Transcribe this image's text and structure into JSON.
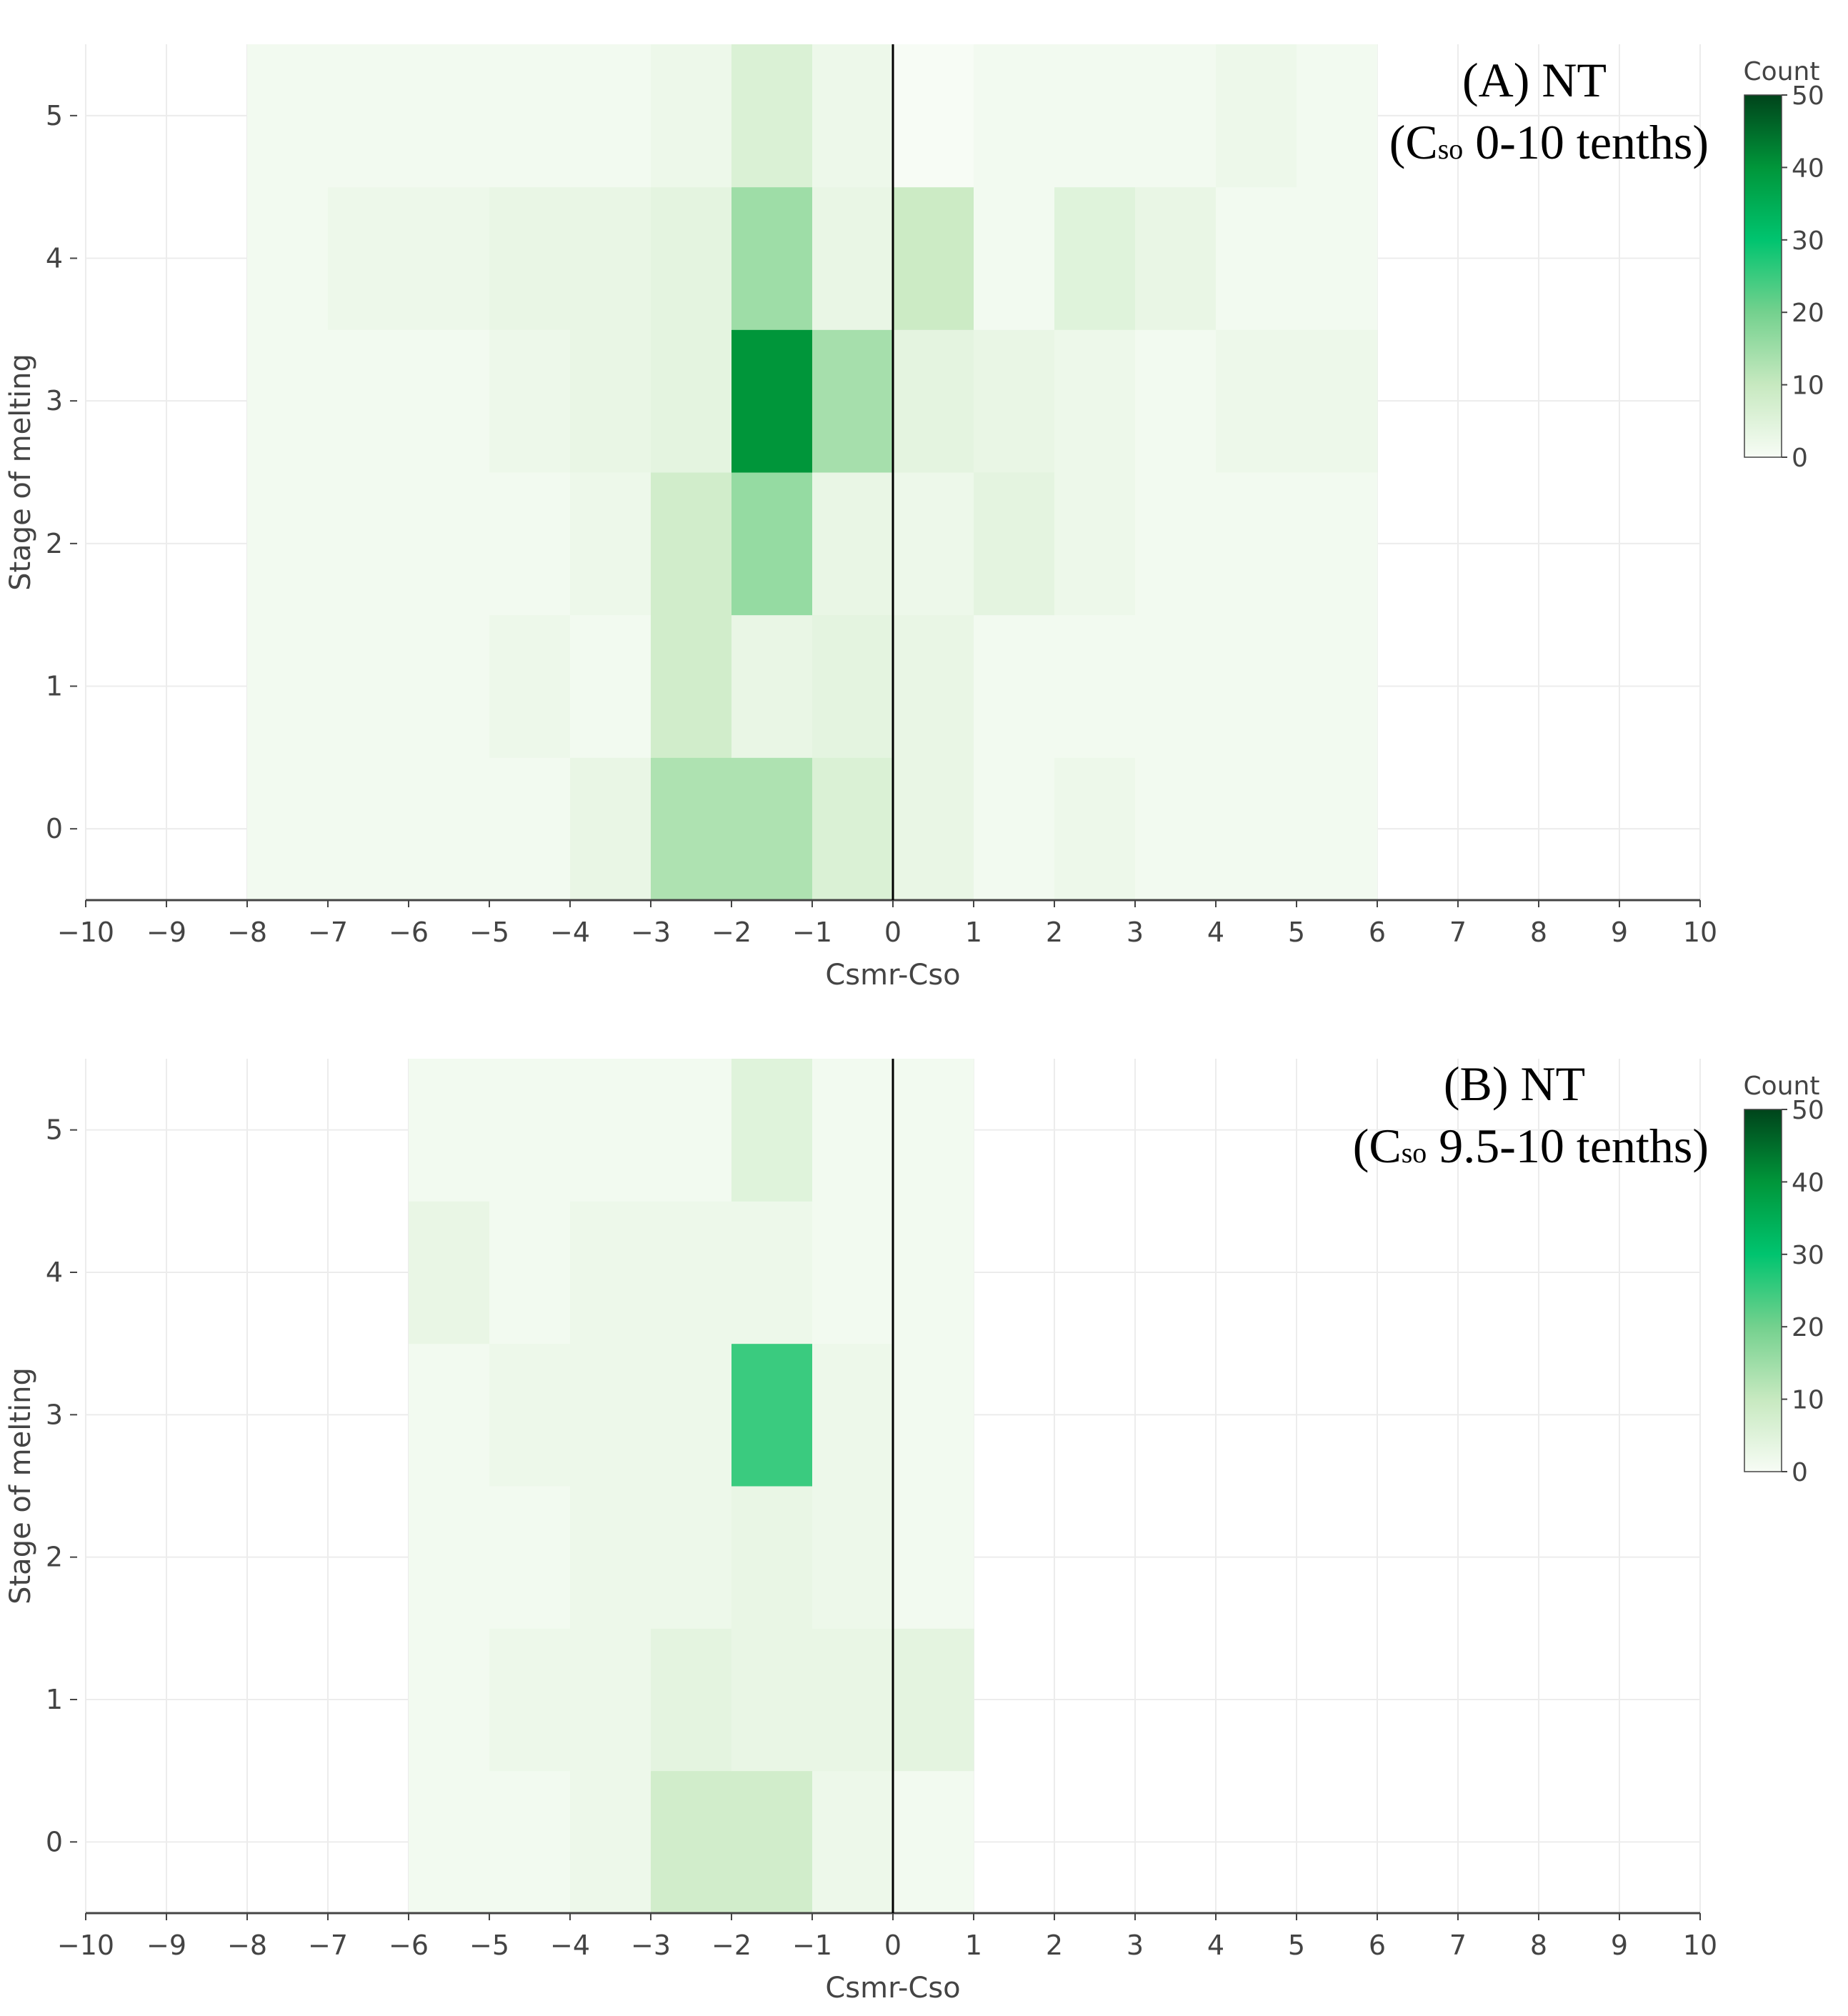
{
  "colorscale": {
    "stops": [
      [
        0,
        "#f7fcf5"
      ],
      [
        0.2,
        "#c7e9c0"
      ],
      [
        0.4,
        "#74d18e"
      ],
      [
        0.6,
        "#00c46f"
      ],
      [
        0.8,
        "#00963a"
      ],
      [
        1.0,
        "#00441b"
      ]
    ]
  },
  "chart_data": [
    {
      "type": "heatmap",
      "panel_label": "(A)  NT",
      "subtitle_prefix": "(C",
      "subtitle_sub": "so",
      "subtitle_rest": " 0-10 tenths)",
      "xlabel": "Csmr-Cso",
      "ylabel": "Stage of melting",
      "xlim": [
        -10,
        10
      ],
      "ylim": [
        -0.5,
        5.5
      ],
      "x_ticks": [
        "−10",
        "−9",
        "−8",
        "−7",
        "−6",
        "−5",
        "−4",
        "−3",
        "−2",
        "−1",
        "0",
        "1",
        "2",
        "3",
        "4",
        "5",
        "6",
        "7",
        "8",
        "9",
        "10"
      ],
      "y_ticks": [
        "0",
        "1",
        "2",
        "3",
        "4",
        "5"
      ],
      "colorbar": {
        "title": "Count",
        "min": 0,
        "max": 50,
        "ticks": [
          "0",
          "10",
          "20",
          "30",
          "40",
          "50"
        ]
      },
      "vertical_line_x": 0,
      "x_bins": [
        -8,
        -7,
        -6,
        -5,
        -4,
        -3,
        -2,
        -1,
        0,
        1,
        2,
        3,
        4,
        5
      ],
      "y_bins": [
        0,
        1,
        2,
        3,
        4,
        5
      ],
      "z": [
        [
          1,
          1,
          1,
          1,
          3,
          13,
          13,
          6,
          3,
          1,
          2,
          1,
          1,
          1
        ],
        [
          1,
          1,
          1,
          2,
          1,
          8,
          3,
          4,
          3,
          1,
          1,
          1,
          1,
          1
        ],
        [
          1,
          1,
          1,
          1,
          2,
          8,
          16,
          3,
          2,
          4,
          2,
          1,
          1,
          1
        ],
        [
          1,
          1,
          1,
          2,
          3,
          4,
          40,
          14,
          4,
          3,
          2,
          1,
          2,
          2
        ],
        [
          1,
          2,
          2,
          3,
          3,
          4,
          15,
          3,
          9,
          1,
          5,
          3,
          1,
          1
        ],
        [
          1,
          1,
          1,
          1,
          1,
          2,
          6,
          2,
          0,
          1,
          1,
          1,
          2,
          1
        ]
      ]
    },
    {
      "type": "heatmap",
      "panel_label": "(B)  NT",
      "subtitle_prefix": "(C",
      "subtitle_sub": "so",
      "subtitle_rest": " 9.5-10 tenths)",
      "xlabel": "Csmr-Cso",
      "ylabel": "Stage of melting",
      "xlim": [
        -10,
        10
      ],
      "ylim": [
        -0.5,
        5.5
      ],
      "x_ticks": [
        "−10",
        "−9",
        "−8",
        "−7",
        "−6",
        "−5",
        "−4",
        "−3",
        "−2",
        "−1",
        "0",
        "1",
        "2",
        "3",
        "4",
        "5",
        "6",
        "7",
        "8",
        "9",
        "10"
      ],
      "y_ticks": [
        "0",
        "1",
        "2",
        "3",
        "4",
        "5"
      ],
      "colorbar": {
        "title": "Count",
        "min": 0,
        "max": 50,
        "ticks": [
          "0",
          "10",
          "20",
          "30",
          "40",
          "50"
        ]
      },
      "vertical_line_x": 0,
      "x_bins": [
        -6,
        -5,
        -4,
        -3,
        -2,
        -1,
        0
      ],
      "y_bins": [
        0,
        1,
        2,
        3,
        4,
        5
      ],
      "z": [
        [
          1,
          1,
          2,
          8,
          8,
          2,
          1
        ],
        [
          1,
          2,
          2,
          4,
          3,
          3,
          4
        ],
        [
          1,
          1,
          2,
          2,
          3,
          2,
          1
        ],
        [
          1,
          2,
          2,
          2,
          25,
          2,
          1
        ],
        [
          3,
          1,
          2,
          2,
          2,
          1,
          1
        ],
        [
          1,
          1,
          1,
          1,
          5,
          1,
          1
        ]
      ]
    }
  ]
}
